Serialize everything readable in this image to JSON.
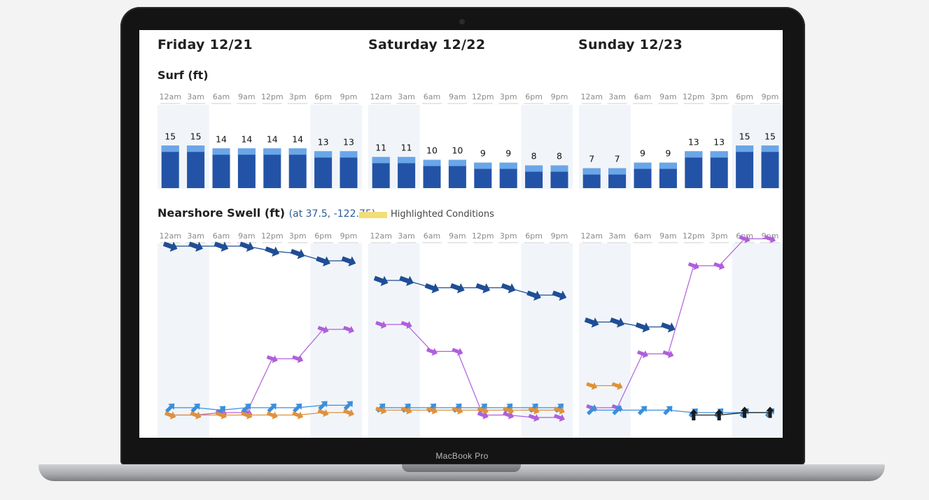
{
  "device": {
    "label": "MacBook Pro"
  },
  "days": [
    {
      "title": "Friday 12/21"
    },
    {
      "title": "Saturday 12/22"
    },
    {
      "title": "Sunday 12/23"
    }
  ],
  "sections": {
    "surf": "Surf (ft)",
    "swell": "Nearshore Swell (ft)",
    "swell_location": "(at 37.5, -122.75)",
    "legend": "Highlighted Conditions"
  },
  "colors": {
    "surf_bar": "#2353a7",
    "surf_bar_top": "#6aa6e8",
    "night_shade": "#f1f5f9",
    "swell_primary": "#1f4e96",
    "swell_secondary": "#b05fdc",
    "swell_light": "#3b8fdc",
    "swell_orange": "#e0913b",
    "swell_black": "#1a1a1a",
    "highlight": "#f3dd77"
  },
  "chart_data": [
    {
      "type": "bar",
      "title": "Surf (ft)",
      "categories": [
        "12am",
        "3am",
        "6am",
        "9am",
        "12pm",
        "3pm",
        "6pm",
        "9pm",
        "12am",
        "3am",
        "6am",
        "9am",
        "12pm",
        "3pm",
        "6pm",
        "9pm",
        "12am",
        "3am",
        "6am",
        "9am",
        "12pm",
        "3pm",
        "6pm",
        "9pm"
      ],
      "values": [
        15,
        15,
        14,
        14,
        14,
        14,
        13,
        13,
        11,
        11,
        10,
        10,
        9,
        9,
        8,
        8,
        7,
        7,
        9,
        9,
        13,
        13,
        15,
        15
      ]
    },
    {
      "type": "line",
      "title": "Nearshore Swell (ft)",
      "categories": [
        "12am",
        "3am",
        "6am",
        "9am",
        "12pm",
        "3pm",
        "6pm",
        "9pm",
        "12am",
        "3am",
        "6am",
        "9am",
        "12pm",
        "3pm",
        "6pm",
        "9pm",
        "12am",
        "3am",
        "6am",
        "9am",
        "12pm",
        "3pm",
        "6pm",
        "9pm"
      ],
      "series": [
        {
          "values": [
            7.6,
            7.6,
            7.6,
            7.6,
            7.4,
            7.3,
            7.0,
            7.0,
            6.2,
            6.2,
            5.9,
            5.9,
            5.9,
            5.9,
            5.6,
            5.6,
            4.5,
            4.5,
            4.3,
            4.3,
            null,
            null,
            null,
            null
          ]
        },
        {
          "values": [
            0.7,
            0.7,
            0.8,
            0.8,
            3.0,
            3.0,
            4.2,
            4.2,
            4.4,
            4.4,
            3.3,
            3.3,
            0.7,
            0.7,
            0.6,
            0.6,
            1.0,
            1.0,
            3.2,
            3.2,
            6.8,
            6.8,
            7.9,
            7.9
          ]
        },
        {
          "values": [
            1.0,
            1.0,
            0.9,
            1.0,
            1.0,
            1.0,
            1.1,
            1.1,
            1.0,
            1.0,
            1.0,
            1.0,
            1.0,
            1.0,
            1.0,
            1.0,
            0.9,
            0.9,
            0.9,
            0.9,
            0.8,
            0.8,
            0.8,
            0.8
          ]
        },
        {
          "values": [
            0.7,
            0.7,
            0.7,
            0.7,
            0.7,
            0.7,
            0.8,
            0.8,
            0.9,
            0.9,
            0.9,
            0.9,
            0.9,
            0.9,
            0.9,
            0.9,
            1.9,
            1.9,
            null,
            null,
            null,
            null,
            null,
            null
          ]
        },
        {
          "values": [
            null,
            null,
            null,
            null,
            null,
            null,
            null,
            null,
            null,
            null,
            null,
            null,
            null,
            null,
            null,
            null,
            null,
            null,
            null,
            null,
            0.7,
            0.7,
            0.8,
            0.8
          ]
        }
      ]
    }
  ]
}
